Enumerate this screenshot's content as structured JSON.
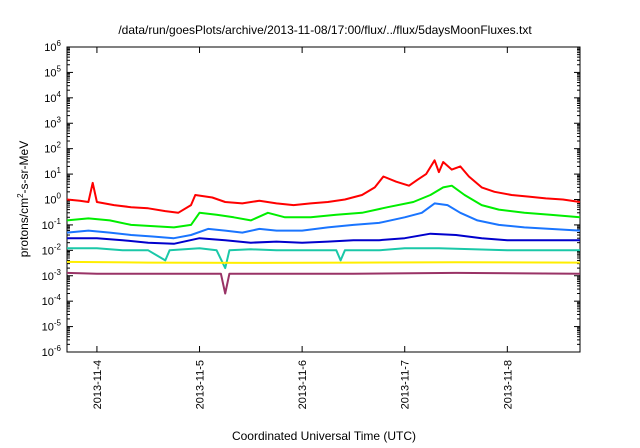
{
  "chart_data": {
    "type": "line",
    "title": "/data/run/goesPlots/archive/2013-11-08/17:00/flux/../flux/5daysMoonFluxes.txt",
    "xlabel": "Coordinated Universal Time (UTC)",
    "ylabel_parts": {
      "base": "protons/cm",
      "sup": "2",
      "rest": "-s-sr-MeV"
    },
    "yscale": "log",
    "ylim": [
      1e-06,
      1000000.0
    ],
    "y_ticks": [
      {
        "base": "10",
        "exp": "-6",
        "value": 1e-06
      },
      {
        "base": "10",
        "exp": "-5",
        "value": 1e-05
      },
      {
        "base": "10",
        "exp": "-4",
        "value": 0.0001
      },
      {
        "base": "10",
        "exp": "-3",
        "value": 0.001
      },
      {
        "base": "10",
        "exp": "-2",
        "value": 0.01
      },
      {
        "base": "10",
        "exp": "-1",
        "value": 0.1
      },
      {
        "base": "10",
        "exp": "0",
        "value": 1.0
      },
      {
        "base": "10",
        "exp": "1",
        "value": 10.0
      },
      {
        "base": "10",
        "exp": "2",
        "value": 100.0
      },
      {
        "base": "10",
        "exp": "3",
        "value": 1000.0
      },
      {
        "base": "10",
        "exp": "4",
        "value": 10000.0
      },
      {
        "base": "10",
        "exp": "5",
        "value": 100000.0
      },
      {
        "base": "10",
        "exp": "6",
        "value": 1000000.0
      }
    ],
    "xlim": [
      "2013-11-03T17:00",
      "2013-11-08T17:00"
    ],
    "x_ticks": [
      {
        "label": "2013-11-4",
        "value": "2013-11-04T00:00"
      },
      {
        "label": "2013-11-5",
        "value": "2013-11-05T00:00"
      },
      {
        "label": "2013-11-6",
        "value": "2013-11-06T00:00"
      },
      {
        "label": "2013-11-7",
        "value": "2013-11-07T00:00"
      },
      {
        "label": "2013-11-8",
        "value": "2013-11-08T00:00"
      }
    ],
    "grid": false,
    "legend": "none",
    "series": [
      {
        "color": "#ff0000",
        "points": [
          [
            "2013-11-03T17:00",
            1.0
          ],
          [
            "2013-11-03T20:00",
            0.9
          ],
          [
            "2013-11-03T22:00",
            0.8
          ],
          [
            "2013-11-03T23:00",
            4.5
          ],
          [
            "2013-11-04T00:00",
            0.8
          ],
          [
            "2013-11-04T04:00",
            0.6
          ],
          [
            "2013-11-04T08:00",
            0.5
          ],
          [
            "2013-11-04T12:00",
            0.45
          ],
          [
            "2013-11-04T16:00",
            0.35
          ],
          [
            "2013-11-04T19:00",
            0.3
          ],
          [
            "2013-11-04T22:00",
            0.6
          ],
          [
            "2013-11-04T23:00",
            1.5
          ],
          [
            "2013-11-05T03:00",
            1.2
          ],
          [
            "2013-11-05T06:00",
            0.8
          ],
          [
            "2013-11-05T10:00",
            0.7
          ],
          [
            "2013-11-05T14:00",
            0.9
          ],
          [
            "2013-11-05T18:00",
            0.7
          ],
          [
            "2013-11-05T22:00",
            0.6
          ],
          [
            "2013-11-06T02:00",
            0.7
          ],
          [
            "2013-11-06T06:00",
            0.8
          ],
          [
            "2013-11-06T10:00",
            1.0
          ],
          [
            "2013-11-06T14:00",
            1.5
          ],
          [
            "2013-11-06T17:00",
            3.0
          ],
          [
            "2013-11-06T19:00",
            8.0
          ],
          [
            "2013-11-06T22:00",
            5.0
          ],
          [
            "2013-11-07T01:00",
            3.5
          ],
          [
            "2013-11-07T03:00",
            6.0
          ],
          [
            "2013-11-07T05:00",
            10.0
          ],
          [
            "2013-11-07T07:00",
            35.0
          ],
          [
            "2013-11-07T08:00",
            12.0
          ],
          [
            "2013-11-07T09:00",
            30.0
          ],
          [
            "2013-11-07T11:00",
            15.0
          ],
          [
            "2013-11-07T13:00",
            20.0
          ],
          [
            "2013-11-07T15:00",
            8.0
          ],
          [
            "2013-11-07T18:00",
            3.0
          ],
          [
            "2013-11-07T21:00",
            2.0
          ],
          [
            "2013-11-08T01:00",
            1.5
          ],
          [
            "2013-11-08T05:00",
            1.3
          ],
          [
            "2013-11-08T09:00",
            1.1
          ],
          [
            "2013-11-08T13:00",
            1.0
          ],
          [
            "2013-11-08T17:00",
            0.8
          ]
        ]
      },
      {
        "color": "#00ee00",
        "points": [
          [
            "2013-11-03T17:00",
            0.15
          ],
          [
            "2013-11-03T22:00",
            0.18
          ],
          [
            "2013-11-04T03:00",
            0.15
          ],
          [
            "2013-11-04T08:00",
            0.1
          ],
          [
            "2013-11-04T13:00",
            0.09
          ],
          [
            "2013-11-04T18:00",
            0.08
          ],
          [
            "2013-11-04T22:00",
            0.1
          ],
          [
            "2013-11-05T00:00",
            0.3
          ],
          [
            "2013-11-05T04:00",
            0.25
          ],
          [
            "2013-11-05T08:00",
            0.2
          ],
          [
            "2013-11-05T12:00",
            0.15
          ],
          [
            "2013-11-05T16:00",
            0.3
          ],
          [
            "2013-11-05T20:00",
            0.2
          ],
          [
            "2013-11-06T02:00",
            0.2
          ],
          [
            "2013-11-06T08:00",
            0.25
          ],
          [
            "2013-11-06T14:00",
            0.3
          ],
          [
            "2013-11-06T20:00",
            0.5
          ],
          [
            "2013-11-07T02:00",
            0.8
          ],
          [
            "2013-11-07T06:00",
            1.5
          ],
          [
            "2013-11-07T09:00",
            3.0
          ],
          [
            "2013-11-07T11:00",
            3.5
          ],
          [
            "2013-11-07T14:00",
            1.5
          ],
          [
            "2013-11-07T18:00",
            0.6
          ],
          [
            "2013-11-07T22:00",
            0.4
          ],
          [
            "2013-11-08T04:00",
            0.3
          ],
          [
            "2013-11-08T10:00",
            0.25
          ],
          [
            "2013-11-08T17:00",
            0.2
          ]
        ]
      },
      {
        "color": "#1a75ff",
        "points": [
          [
            "2013-11-03T17:00",
            0.05
          ],
          [
            "2013-11-03T22:00",
            0.06
          ],
          [
            "2013-11-04T03:00",
            0.05
          ],
          [
            "2013-11-04T08:00",
            0.04
          ],
          [
            "2013-11-04T13:00",
            0.035
          ],
          [
            "2013-11-04T18:00",
            0.03
          ],
          [
            "2013-11-04T22:00",
            0.04
          ],
          [
            "2013-11-05T02:00",
            0.07
          ],
          [
            "2013-11-05T06:00",
            0.06
          ],
          [
            "2013-11-05T10:00",
            0.05
          ],
          [
            "2013-11-05T14:00",
            0.07
          ],
          [
            "2013-11-05T18:00",
            0.06
          ],
          [
            "2013-11-06T00:00",
            0.06
          ],
          [
            "2013-11-06T06:00",
            0.08
          ],
          [
            "2013-11-06T12:00",
            0.1
          ],
          [
            "2013-11-06T18:00",
            0.12
          ],
          [
            "2013-11-07T00:00",
            0.2
          ],
          [
            "2013-11-07T04:00",
            0.3
          ],
          [
            "2013-11-07T07:00",
            0.7
          ],
          [
            "2013-11-07T10:00",
            0.6
          ],
          [
            "2013-11-07T13:00",
            0.3
          ],
          [
            "2013-11-07T17:00",
            0.15
          ],
          [
            "2013-11-07T22:00",
            0.1
          ],
          [
            "2013-11-08T04:00",
            0.08
          ],
          [
            "2013-11-08T10:00",
            0.07
          ],
          [
            "2013-11-08T17:00",
            0.06
          ]
        ]
      },
      {
        "color": "#0000cc",
        "points": [
          [
            "2013-11-03T17:00",
            0.03
          ],
          [
            "2013-11-04T00:00",
            0.03
          ],
          [
            "2013-11-04T06:00",
            0.025
          ],
          [
            "2013-11-04T12:00",
            0.02
          ],
          [
            "2013-11-04T18:00",
            0.018
          ],
          [
            "2013-11-05T00:00",
            0.03
          ],
          [
            "2013-11-05T06:00",
            0.025
          ],
          [
            "2013-11-05T12:00",
            0.02
          ],
          [
            "2013-11-05T18:00",
            0.022
          ],
          [
            "2013-11-06T00:00",
            0.02
          ],
          [
            "2013-11-06T06:00",
            0.022
          ],
          [
            "2013-11-06T12:00",
            0.025
          ],
          [
            "2013-11-06T18:00",
            0.025
          ],
          [
            "2013-11-07T00:00",
            0.03
          ],
          [
            "2013-11-07T06:00",
            0.045
          ],
          [
            "2013-11-07T12:00",
            0.04
          ],
          [
            "2013-11-07T18:00",
            0.03
          ],
          [
            "2013-11-08T00:00",
            0.025
          ],
          [
            "2013-11-08T08:00",
            0.025
          ],
          [
            "2013-11-08T17:00",
            0.025
          ]
        ]
      },
      {
        "color": "#1ac8a8",
        "points": [
          [
            "2013-11-03T17:00",
            0.012
          ],
          [
            "2013-11-04T00:00",
            0.012
          ],
          [
            "2013-11-04T06:00",
            0.01
          ],
          [
            "2013-11-04T12:00",
            0.01
          ],
          [
            "2013-11-04T16:00",
            0.004
          ],
          [
            "2013-11-04T17:00",
            0.01
          ],
          [
            "2013-11-05T00:00",
            0.012
          ],
          [
            "2013-11-05T04:00",
            0.01
          ],
          [
            "2013-11-05T06:00",
            0.002
          ],
          [
            "2013-11-05T07:00",
            0.01
          ],
          [
            "2013-11-05T12:00",
            0.011
          ],
          [
            "2013-11-05T18:00",
            0.01
          ],
          [
            "2013-11-06T00:00",
            0.01
          ],
          [
            "2013-11-06T08:00",
            0.01
          ],
          [
            "2013-11-06T09:00",
            0.004
          ],
          [
            "2013-11-06T10:00",
            0.01
          ],
          [
            "2013-11-06T18:00",
            0.01
          ],
          [
            "2013-11-07T00:00",
            0.012
          ],
          [
            "2013-11-07T08:00",
            0.012
          ],
          [
            "2013-11-07T16:00",
            0.011
          ],
          [
            "2013-11-08T00:00",
            0.01
          ],
          [
            "2013-11-08T08:00",
            0.01
          ],
          [
            "2013-11-08T17:00",
            0.01
          ]
        ]
      },
      {
        "color": "#ffee00",
        "points": [
          [
            "2013-11-03T17:00",
            0.0035
          ],
          [
            "2013-11-04T12:00",
            0.0033
          ],
          [
            "2013-11-05T12:00",
            0.0032
          ],
          [
            "2013-11-06T12:00",
            0.0033
          ],
          [
            "2013-11-07T12:00",
            0.0034
          ],
          [
            "2013-11-08T17:00",
            0.0033
          ]
        ]
      },
      {
        "color": "#993366",
        "points": [
          [
            "2013-11-03T17:00",
            0.0013
          ],
          [
            "2013-11-04T00:00",
            0.0012
          ],
          [
            "2013-11-04T12:00",
            0.0012
          ],
          [
            "2013-11-05T00:00",
            0.0012
          ],
          [
            "2013-11-05T05:00",
            0.0012
          ],
          [
            "2013-11-05T06:00",
            0.0002
          ],
          [
            "2013-11-05T07:00",
            0.0012
          ],
          [
            "2013-11-05T18:00",
            0.0012
          ],
          [
            "2013-11-06T12:00",
            0.0012
          ],
          [
            "2013-11-07T12:00",
            0.0013
          ],
          [
            "2013-11-08T17:00",
            0.0012
          ]
        ]
      }
    ]
  }
}
